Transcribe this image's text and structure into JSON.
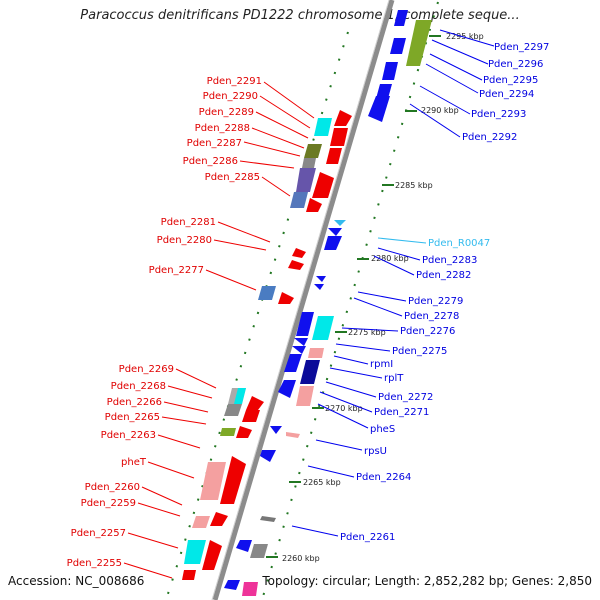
{
  "title": "Paracoccus denitrificans PD1222 chromosome 1, complete seque...",
  "footer": {
    "accession": "Accession: NC_008686",
    "summary": "Topology: circular; Length: 2,852,282 bp; Genes: 2,850"
  },
  "colors": {
    "left_label": "#e00000",
    "right_label": "#0000e0",
    "rna_label": "#33bbee",
    "backbone": "#8c8c8c",
    "tick": "#227722"
  },
  "kbp_marks": [
    "2295 kbp",
    "2290 kbp",
    "2285 kbp",
    "2280 kbp",
    "2275 kbp",
    "2270 kbp",
    "2265 kbp",
    "2260 kbp"
  ],
  "left_labels": [
    "Pden_2291",
    "Pden_2290",
    "Pden_2289",
    "Pden_2288",
    "Pden_2287",
    "Pden_2286",
    "Pden_2285",
    "Pden_2281",
    "Pden_2280",
    "Pden_2277",
    "Pden_2269",
    "Pden_2268",
    "Pden_2266",
    "Pden_2265",
    "Pden_2263",
    "pheT",
    "Pden_2260",
    "Pden_2259",
    "Pden_2257",
    "Pden_2255"
  ],
  "right_labels": [
    "Pden_2297",
    "Pden_2296",
    "Pden_2295",
    "Pden_2294",
    "Pden_2293",
    "Pden_2292",
    "Pden_R0047",
    "Pden_2283",
    "Pden_2282",
    "Pden_2279",
    "Pden_2278",
    "Pden_2276",
    "Pden_2275",
    "rpmI",
    "rplT",
    "Pden_2272",
    "Pden_2271",
    "pheS",
    "rpsU",
    "Pden_2264",
    "Pden_2261"
  ]
}
